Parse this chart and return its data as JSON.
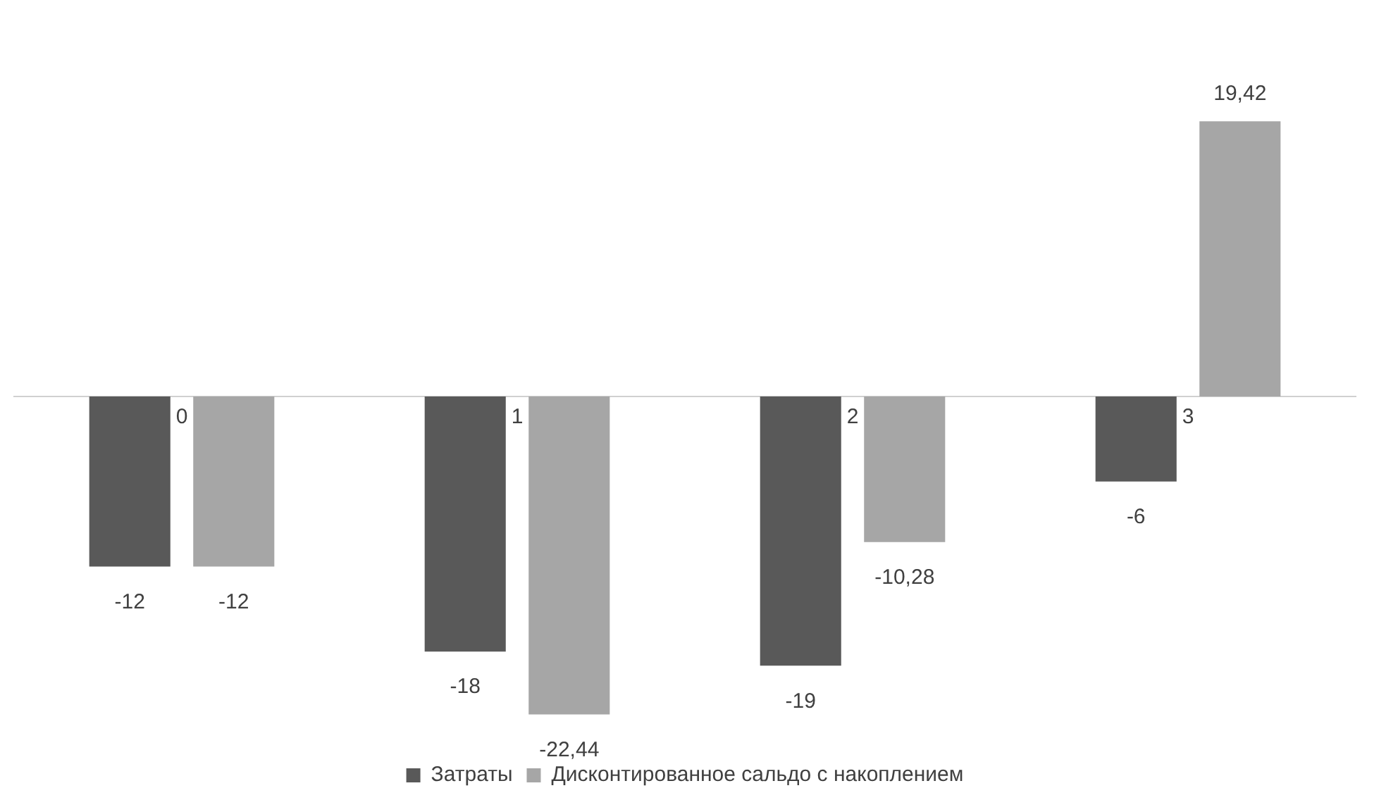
{
  "chart_data": {
    "type": "bar",
    "categories": [
      "0",
      "1",
      "2",
      "3"
    ],
    "series": [
      {
        "name": "Затраты",
        "color": "#595959",
        "values": [
          -12,
          -18,
          -19,
          -6
        ],
        "value_labels": [
          "-12",
          "-18",
          "-19",
          "-6"
        ]
      },
      {
        "name": "Дисконтированное сальдо с накоплением",
        "color": "#a6a6a6",
        "values": [
          -12,
          -22.44,
          -10.28,
          19.42
        ],
        "value_labels": [
          "-12",
          "-22,44",
          "-10,28",
          "19,42"
        ]
      }
    ],
    "grid": false,
    "legend": "bottom",
    "tick_labels": "x"
  }
}
